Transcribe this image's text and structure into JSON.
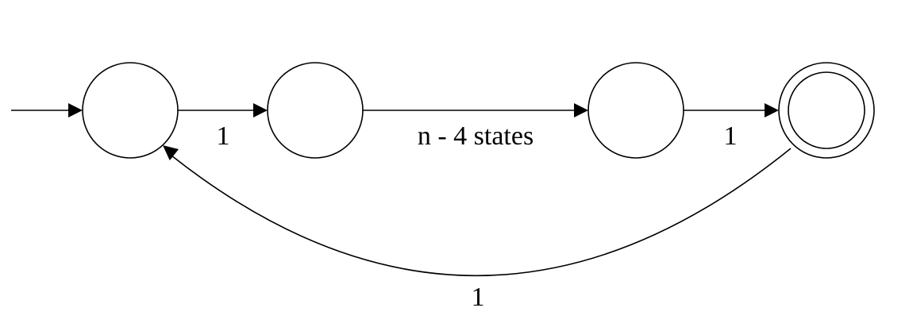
{
  "diagram": {
    "type": "finite-automaton",
    "states": [
      {
        "id": "q0",
        "start": true,
        "accepting": false
      },
      {
        "id": "q1",
        "start": false,
        "accepting": false
      },
      {
        "id": "q2",
        "start": false,
        "accepting": false
      },
      {
        "id": "q3",
        "start": false,
        "accepting": true
      }
    ],
    "transitions": [
      {
        "from": "q0",
        "to": "q1",
        "label": "1"
      },
      {
        "from": "q1",
        "to": "q2",
        "label": "n - 4 states"
      },
      {
        "from": "q2",
        "to": "q3",
        "label": "1"
      },
      {
        "from": "q3",
        "to": "q0",
        "label": "1"
      }
    ],
    "colors": {
      "stroke": "#000000",
      "background": "#ffffff"
    }
  }
}
